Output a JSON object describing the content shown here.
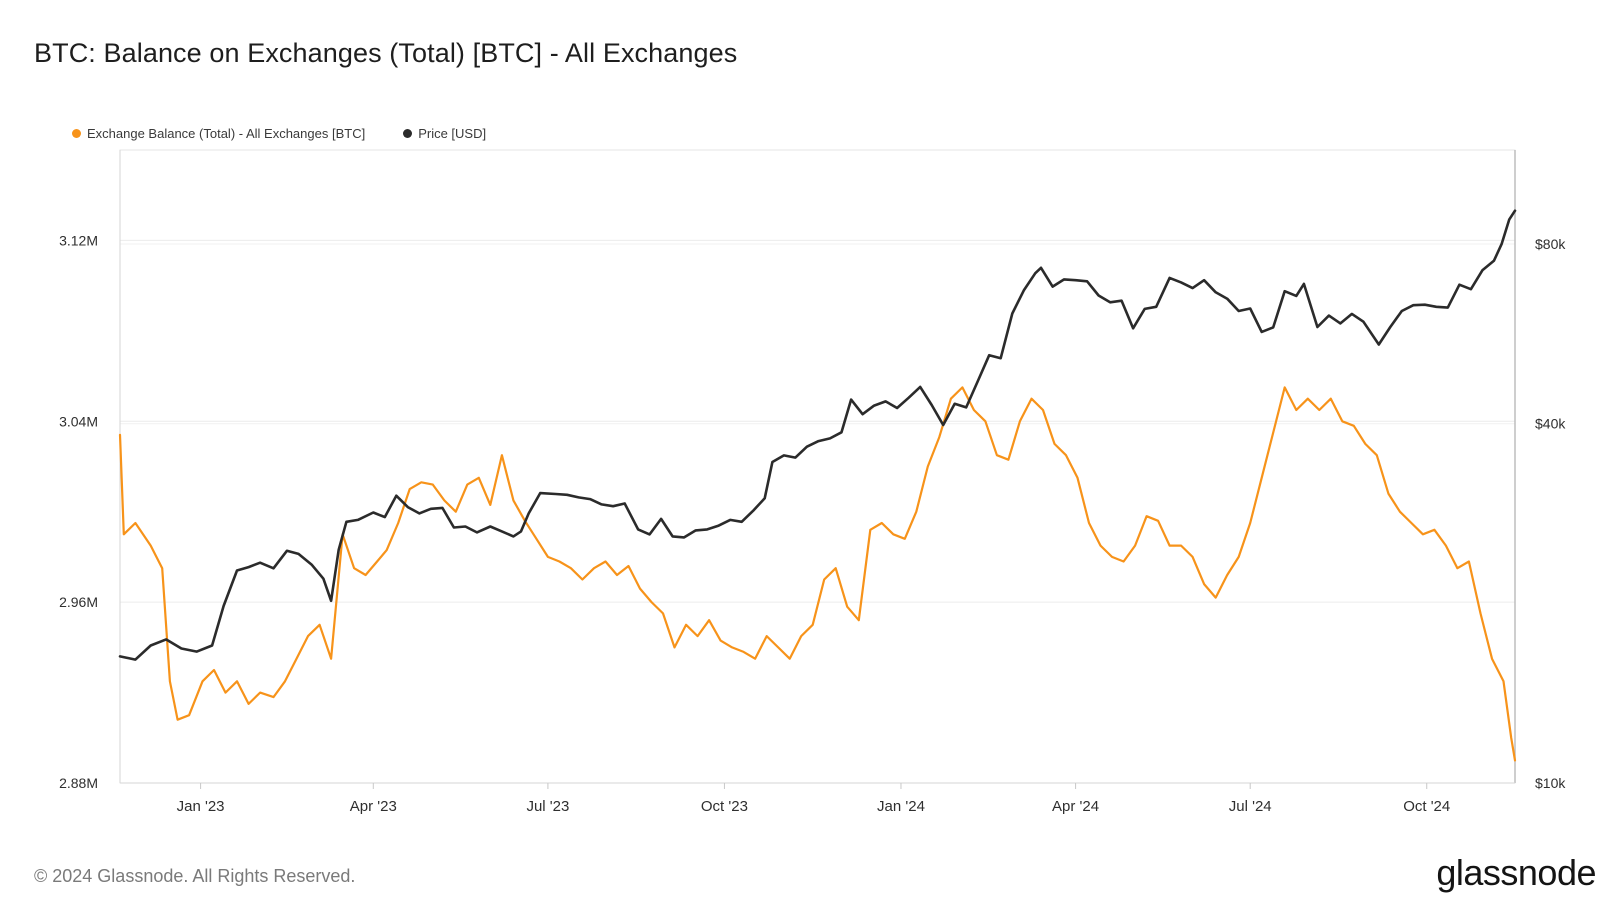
{
  "title": "BTC: Balance on Exchanges (Total) [BTC] - All Exchanges",
  "footer": {
    "copyright": "© 2024 Glassnode. All Rights Reserved.",
    "logo": "glassnode"
  },
  "colors": {
    "balance": "#f7931a",
    "price": "#2b2b2b",
    "grid": "#ececec",
    "axis_text": "#2f2f2f"
  },
  "chart_data": {
    "type": "line",
    "title": "BTC: Balance on Exchanges (Total) [BTC] - All Exchanges",
    "legend_position": "top-left",
    "grid": true,
    "x_range": [
      "2022-11-20",
      "2024-11-16"
    ],
    "x_ticks": [
      {
        "date": "2023-01-01",
        "label": "Jan '23"
      },
      {
        "date": "2023-04-01",
        "label": "Apr '23"
      },
      {
        "date": "2023-07-01",
        "label": "Jul '23"
      },
      {
        "date": "2023-10-01",
        "label": "Oct '23"
      },
      {
        "date": "2024-01-01",
        "label": "Jan '24"
      },
      {
        "date": "2024-04-01",
        "label": "Apr '24"
      },
      {
        "date": "2024-07-01",
        "label": "Jul '24"
      },
      {
        "date": "2024-10-01",
        "label": "Oct '24"
      }
    ],
    "y_left": {
      "label": "",
      "range": [
        2880000,
        3160000
      ],
      "ticks": [
        {
          "value": 2880000,
          "label": "2.88M"
        },
        {
          "value": 2960000,
          "label": "2.96M"
        },
        {
          "value": 3040000,
          "label": "3.04M"
        },
        {
          "value": 3120000,
          "label": "3.12M"
        }
      ]
    },
    "y_right": {
      "label": "",
      "scale": "log",
      "range": [
        10000,
        115000
      ],
      "ticks": [
        {
          "value": 10000,
          "label": "$10k"
        },
        {
          "value": 40000,
          "label": "$40k"
        },
        {
          "value": 80000,
          "label": "$80k"
        }
      ]
    },
    "series": [
      {
        "name": "Exchange Balance (Total) - All Exchanges [BTC]",
        "axis": "left",
        "x": [
          "2022-11-20",
          "2022-11-22",
          "2022-11-28",
          "2022-12-06",
          "2022-12-12",
          "2022-12-16",
          "2022-12-20",
          "2022-12-26",
          "2023-01-02",
          "2023-01-08",
          "2023-01-14",
          "2023-01-20",
          "2023-01-26",
          "2023-02-01",
          "2023-02-08",
          "2023-02-14",
          "2023-02-20",
          "2023-02-26",
          "2023-03-04",
          "2023-03-10",
          "2023-03-16",
          "2023-03-22",
          "2023-03-28",
          "2023-04-03",
          "2023-04-08",
          "2023-04-14",
          "2023-04-20",
          "2023-04-26",
          "2023-05-02",
          "2023-05-08",
          "2023-05-14",
          "2023-05-20",
          "2023-05-26",
          "2023-06-01",
          "2023-06-07",
          "2023-06-13",
          "2023-06-19",
          "2023-06-25",
          "2023-07-01",
          "2023-07-07",
          "2023-07-13",
          "2023-07-19",
          "2023-07-25",
          "2023-07-31",
          "2023-08-06",
          "2023-08-12",
          "2023-08-18",
          "2023-08-24",
          "2023-08-30",
          "2023-09-05",
          "2023-09-11",
          "2023-09-17",
          "2023-09-23",
          "2023-09-29",
          "2023-10-05",
          "2023-10-11",
          "2023-10-17",
          "2023-10-23",
          "2023-10-29",
          "2023-11-04",
          "2023-11-10",
          "2023-11-16",
          "2023-11-22",
          "2023-11-28",
          "2023-12-04",
          "2023-12-10",
          "2023-12-16",
          "2023-12-22",
          "2023-12-28",
          "2024-01-03",
          "2024-01-09",
          "2024-01-15",
          "2024-01-21",
          "2024-01-27",
          "2024-02-02",
          "2024-02-08",
          "2024-02-14",
          "2024-02-20",
          "2024-02-26",
          "2024-03-03",
          "2024-03-09",
          "2024-03-15",
          "2024-03-21",
          "2024-03-27",
          "2024-04-02",
          "2024-04-08",
          "2024-04-14",
          "2024-04-20",
          "2024-04-26",
          "2024-05-02",
          "2024-05-08",
          "2024-05-14",
          "2024-05-20",
          "2024-05-26",
          "2024-06-01",
          "2024-06-07",
          "2024-06-13",
          "2024-06-19",
          "2024-06-25",
          "2024-07-01",
          "2024-07-07",
          "2024-07-13",
          "2024-07-19",
          "2024-07-25",
          "2024-07-31",
          "2024-08-06",
          "2024-08-12",
          "2024-08-18",
          "2024-08-24",
          "2024-08-30",
          "2024-09-05",
          "2024-09-11",
          "2024-09-17",
          "2024-09-23",
          "2024-09-29",
          "2024-10-05",
          "2024-10-11",
          "2024-10-17",
          "2024-10-23",
          "2024-10-29",
          "2024-11-04",
          "2024-11-10",
          "2024-11-14",
          "2024-11-16"
        ],
        "values": [
          3034000,
          2990000,
          2995000,
          2985000,
          2975000,
          2925000,
          2908000,
          2910000,
          2925000,
          2930000,
          2920000,
          2925000,
          2915000,
          2920000,
          2918000,
          2925000,
          2935000,
          2945000,
          2950000,
          2935000,
          2990000,
          2975000,
          2972000,
          2978000,
          2983000,
          2995000,
          3010000,
          3013000,
          3012000,
          3005000,
          3000000,
          3012000,
          3015000,
          3003000,
          3025000,
          3005000,
          2996000,
          2988000,
          2980000,
          2978000,
          2975000,
          2970000,
          2975000,
          2978000,
          2972000,
          2976000,
          2966000,
          2960000,
          2955000,
          2940000,
          2950000,
          2945000,
          2952000,
          2943000,
          2940000,
          2938000,
          2935000,
          2945000,
          2940000,
          2935000,
          2945000,
          2950000,
          2970000,
          2975000,
          2958000,
          2952000,
          2992000,
          2995000,
          2990000,
          2988000,
          3000000,
          3020000,
          3033000,
          3050000,
          3055000,
          3045000,
          3040000,
          3025000,
          3023000,
          3040000,
          3050000,
          3045000,
          3030000,
          3025000,
          3015000,
          2995000,
          2985000,
          2980000,
          2978000,
          2985000,
          2998000,
          2996000,
          2985000,
          2985000,
          2980000,
          2968000,
          2962000,
          2972000,
          2980000,
          2995000,
          3015000,
          3035000,
          3055000,
          3045000,
          3050000,
          3045000,
          3050000,
          3040000,
          3038000,
          3030000,
          3025000,
          3008000,
          3000000,
          2995000,
          2990000,
          2992000,
          2985000,
          2975000,
          2978000,
          2955000,
          2935000,
          2925000,
          2900000,
          2890000
        ]
      },
      {
        "name": "Price [USD]",
        "axis": "right",
        "x": [
          "2022-11-20",
          "2022-11-28",
          "2022-12-06",
          "2022-12-14",
          "2022-12-22",
          "2022-12-30",
          "2023-01-07",
          "2023-01-13",
          "2023-01-20",
          "2023-01-26",
          "2023-02-01",
          "2023-02-08",
          "2023-02-15",
          "2023-02-21",
          "2023-02-28",
          "2023-03-06",
          "2023-03-10",
          "2023-03-14",
          "2023-03-18",
          "2023-03-24",
          "2023-04-01",
          "2023-04-07",
          "2023-04-13",
          "2023-04-19",
          "2023-04-25",
          "2023-05-01",
          "2023-05-07",
          "2023-05-13",
          "2023-05-19",
          "2023-05-25",
          "2023-06-01",
          "2023-06-07",
          "2023-06-13",
          "2023-06-17",
          "2023-06-21",
          "2023-06-27",
          "2023-07-05",
          "2023-07-11",
          "2023-07-17",
          "2023-07-23",
          "2023-07-29",
          "2023-08-04",
          "2023-08-10",
          "2023-08-17",
          "2023-08-23",
          "2023-08-29",
          "2023-09-04",
          "2023-09-10",
          "2023-09-16",
          "2023-09-22",
          "2023-09-28",
          "2023-10-04",
          "2023-10-10",
          "2023-10-16",
          "2023-10-22",
          "2023-10-26",
          "2023-11-01",
          "2023-11-07",
          "2023-11-13",
          "2023-11-19",
          "2023-11-25",
          "2023-12-01",
          "2023-12-06",
          "2023-12-12",
          "2023-12-18",
          "2023-12-24",
          "2023-12-30",
          "2024-01-05",
          "2024-01-11",
          "2024-01-17",
          "2024-01-23",
          "2024-01-29",
          "2024-02-04",
          "2024-02-10",
          "2024-02-16",
          "2024-02-22",
          "2024-02-28",
          "2024-03-05",
          "2024-03-11",
          "2024-03-14",
          "2024-03-20",
          "2024-03-26",
          "2024-04-01",
          "2024-04-07",
          "2024-04-13",
          "2024-04-19",
          "2024-04-25",
          "2024-05-01",
          "2024-05-07",
          "2024-05-13",
          "2024-05-20",
          "2024-05-26",
          "2024-06-01",
          "2024-06-07",
          "2024-06-13",
          "2024-06-19",
          "2024-06-25",
          "2024-07-01",
          "2024-07-07",
          "2024-07-13",
          "2024-07-19",
          "2024-07-25",
          "2024-07-29",
          "2024-08-05",
          "2024-08-11",
          "2024-08-17",
          "2024-08-23",
          "2024-08-29",
          "2024-09-06",
          "2024-09-12",
          "2024-09-18",
          "2024-09-24",
          "2024-09-30",
          "2024-10-06",
          "2024-10-12",
          "2024-10-18",
          "2024-10-24",
          "2024-10-30",
          "2024-11-05",
          "2024-11-09",
          "2024-11-13",
          "2024-11-16"
        ],
        "values": [
          16300,
          16100,
          17000,
          17400,
          16800,
          16600,
          17000,
          19800,
          22700,
          23000,
          23400,
          22900,
          24500,
          24200,
          23200,
          22000,
          20200,
          24600,
          27400,
          27600,
          28400,
          27900,
          30300,
          29000,
          28300,
          28800,
          28900,
          26800,
          26900,
          26300,
          26900,
          26400,
          25900,
          26400,
          28300,
          30600,
          30500,
          30400,
          30100,
          29900,
          29300,
          29100,
          29400,
          26600,
          26100,
          27700,
          25900,
          25800,
          26500,
          26600,
          27000,
          27600,
          27400,
          28600,
          30000,
          34500,
          35400,
          35100,
          36600,
          37400,
          37800,
          38700,
          43900,
          41500,
          42900,
          43600,
          42500,
          44200,
          46100,
          43000,
          39800,
          43200,
          42600,
          47100,
          52100,
          51500,
          61200,
          66900,
          71500,
          73000,
          67900,
          69800,
          69600,
          69300,
          65600,
          63900,
          64300,
          57800,
          62300,
          62800,
          70200,
          69000,
          67500,
          69600,
          66400,
          64800,
          61800,
          62400,
          57000,
          58000,
          66700,
          65500,
          68600,
          58100,
          60700,
          58900,
          61100,
          59300,
          54300,
          58100,
          61800,
          63200,
          63300,
          62800,
          62600,
          68400,
          67200,
          72300,
          75000,
          80000,
          87900,
          91000
        ]
      }
    ]
  }
}
